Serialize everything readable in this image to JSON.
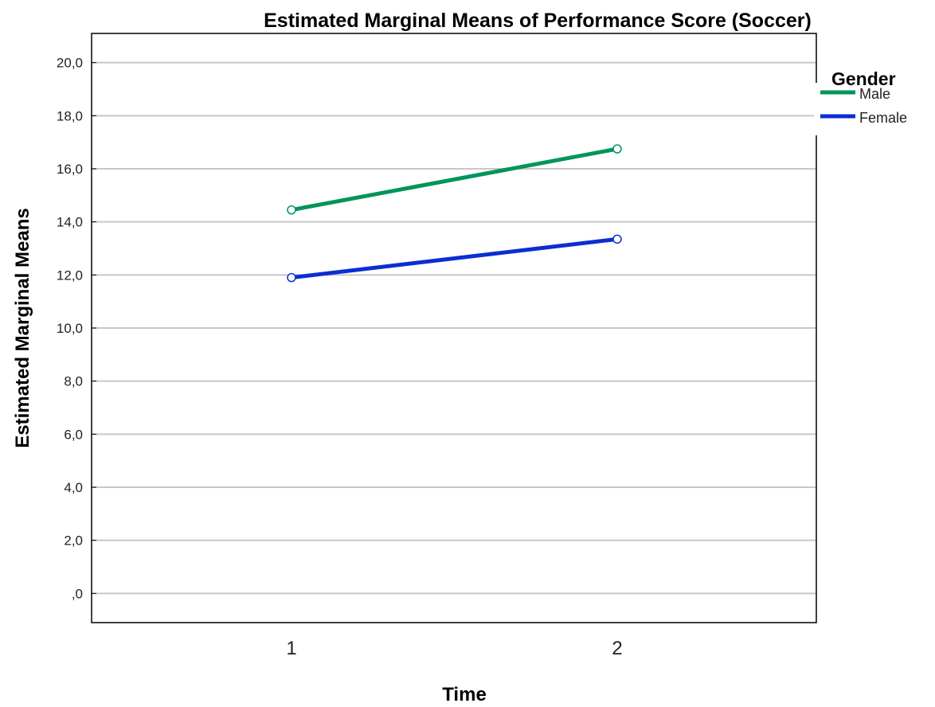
{
  "chart_data": {
    "type": "line",
    "title": "Estimated Marginal Means of Performance Score (Soccer)",
    "xlabel": "Time",
    "ylabel": "Estimated Marginal Means",
    "categories": [
      "1",
      "2"
    ],
    "y_tick_labels": [
      ",0",
      "2,0",
      "4,0",
      "6,0",
      "8,0",
      "10,0",
      "12,0",
      "14,0",
      "16,0",
      "18,0",
      "20,0"
    ],
    "ylim": [
      -1.1,
      21.1
    ],
    "grid": true,
    "legend": {
      "title": "Gender",
      "placement": "right"
    },
    "series": [
      {
        "name": "Male",
        "color": "#00955a",
        "values": [
          14.45,
          16.75
        ]
      },
      {
        "name": "Female",
        "color": "#0a2ed2",
        "values": [
          11.9,
          13.35
        ]
      }
    ]
  }
}
